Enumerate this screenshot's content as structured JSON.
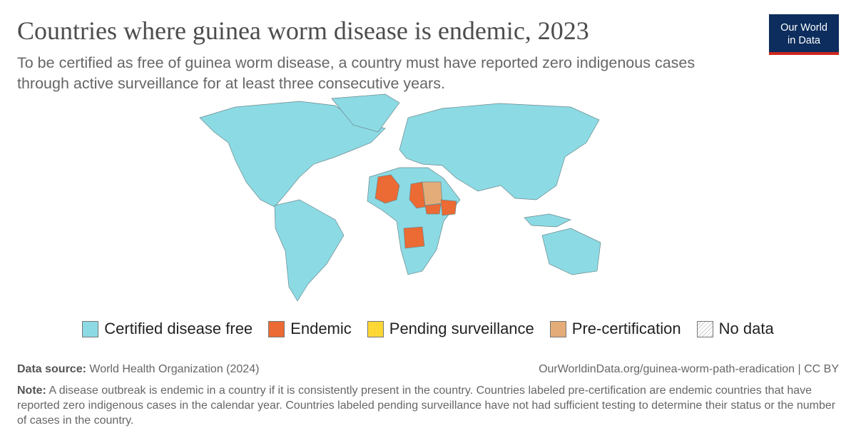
{
  "header": {
    "title": "Countries where guinea worm disease is endemic, 2023",
    "subtitle": "To be certified as free of guinea worm disease, a country must have reported zero indigenous cases through active surveillance for at least three consecutive years."
  },
  "logo": {
    "line1": "Our World",
    "line2": "in Data"
  },
  "legend": [
    {
      "label": "Certified disease free",
      "color": "#8cdae4"
    },
    {
      "label": "Endemic",
      "color": "#ec6a33"
    },
    {
      "label": "Pending surveillance",
      "color": "#fdd835"
    },
    {
      "label": "Pre-certification",
      "color": "#e3ac78"
    },
    {
      "label": "No data",
      "color": "#cccccc"
    }
  ],
  "footer": {
    "source_label": "Data source:",
    "source": "World Health Organization (2024)",
    "url": "OurWorldinData.org/guinea-worm-path-eradication | CC BY",
    "note_label": "Note:",
    "note": "A disease outbreak is endemic in a country if it is consistently present in the country. Countries labeled pre-certification are endemic countries that have reported zero indigenous cases in the calendar year. Countries labeled pending surveillance have not had sufficient testing to determine their status or the number of cases in the country."
  }
}
